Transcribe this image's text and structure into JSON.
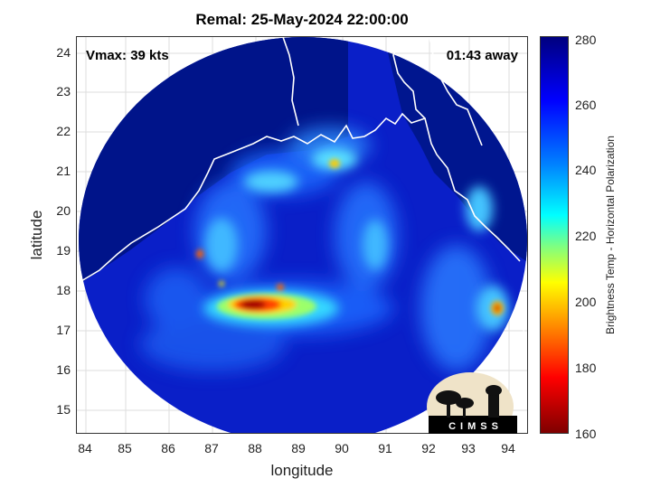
{
  "title": "Remal: 25-May-2024 22:00:00",
  "annotations": {
    "vmax": "Vmax: 39 kts",
    "time_away": "01:43 away"
  },
  "axes": {
    "xlabel": "longitude",
    "ylabel": "latitude",
    "xticks": [
      "84",
      "85",
      "86",
      "87",
      "88",
      "89",
      "90",
      "91",
      "92",
      "93",
      "94"
    ],
    "yticks": [
      "24",
      "23",
      "22",
      "21",
      "20",
      "19",
      "18",
      "17",
      "16",
      "15"
    ],
    "xlim": [
      83.8,
      94.4
    ],
    "ylim": [
      14.4,
      24.4
    ]
  },
  "colorbar": {
    "label": "Brightness Temp - Horizontal Polarization",
    "ticks": [
      "280",
      "260",
      "240",
      "220",
      "200",
      "180",
      "160"
    ],
    "range": [
      160,
      280
    ],
    "colormap": "jet"
  },
  "logo": {
    "text": "CIMSS"
  },
  "colors": {
    "background_cold": "#00007f",
    "coastline": "#ffffff",
    "hot": "#7f0000"
  }
}
